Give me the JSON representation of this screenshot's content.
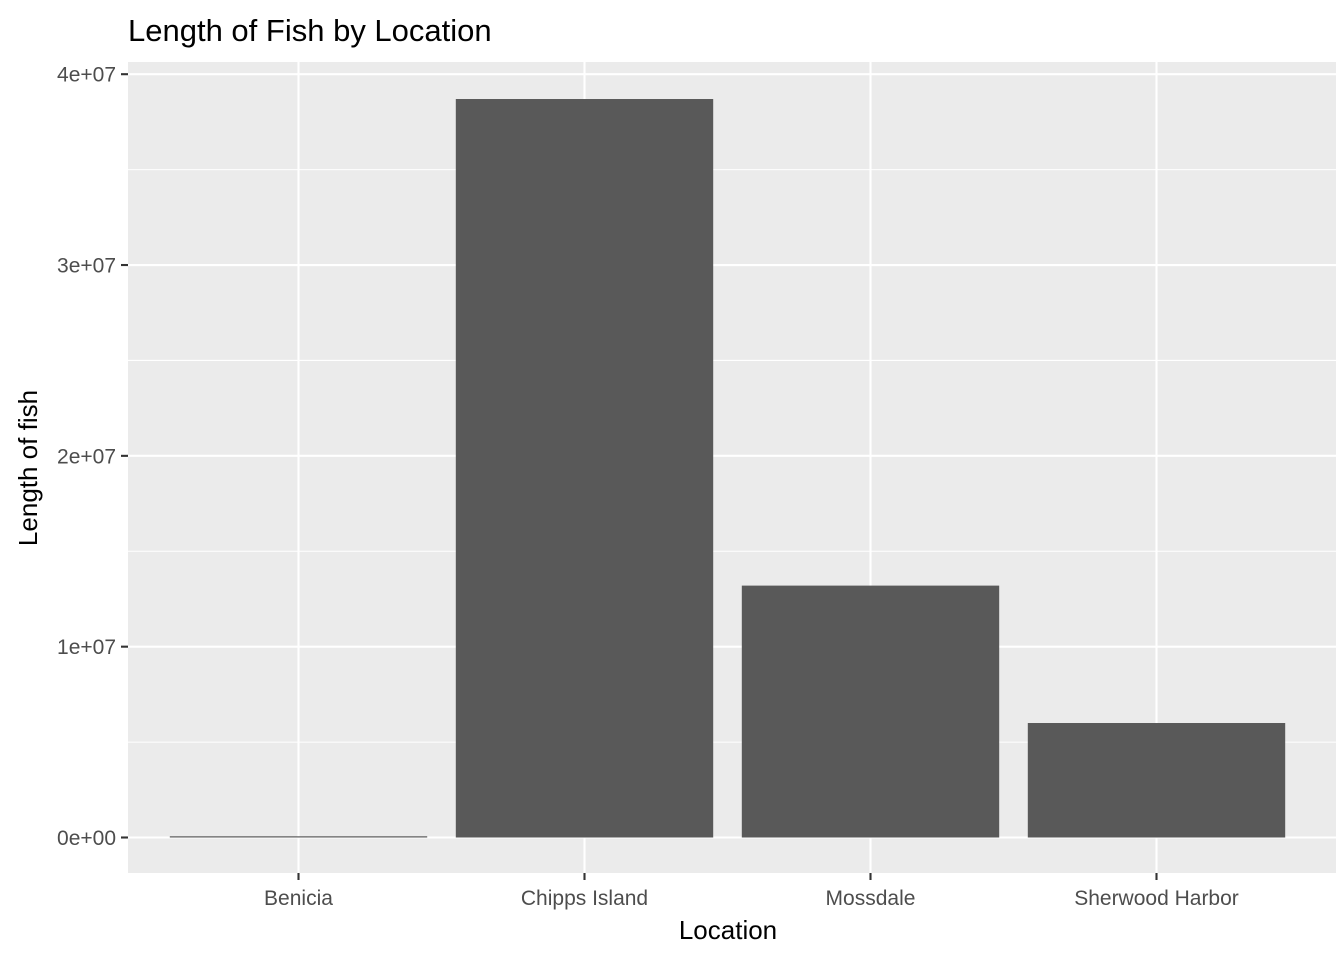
{
  "chart_data": {
    "type": "bar",
    "title": "Length of Fish by Location",
    "xlabel": "Location",
    "ylabel": "Length of fish",
    "categories": [
      "Benicia",
      "Chipps Island",
      "Mossdale",
      "Sherwood Harbor"
    ],
    "values": [
      60000,
      38700000,
      13200000,
      6000000
    ],
    "ylim": [
      0,
      40000000
    ],
    "yticks": [
      0,
      10000000,
      20000000,
      30000000,
      40000000
    ],
    "ytick_labels": [
      "0e+00",
      "1e+07",
      "2e+07",
      "3e+07",
      "4e+07"
    ],
    "grid": true,
    "bar_color": "#595959",
    "panel_color": "#ebebeb",
    "gridline_color": "#ffffff"
  }
}
